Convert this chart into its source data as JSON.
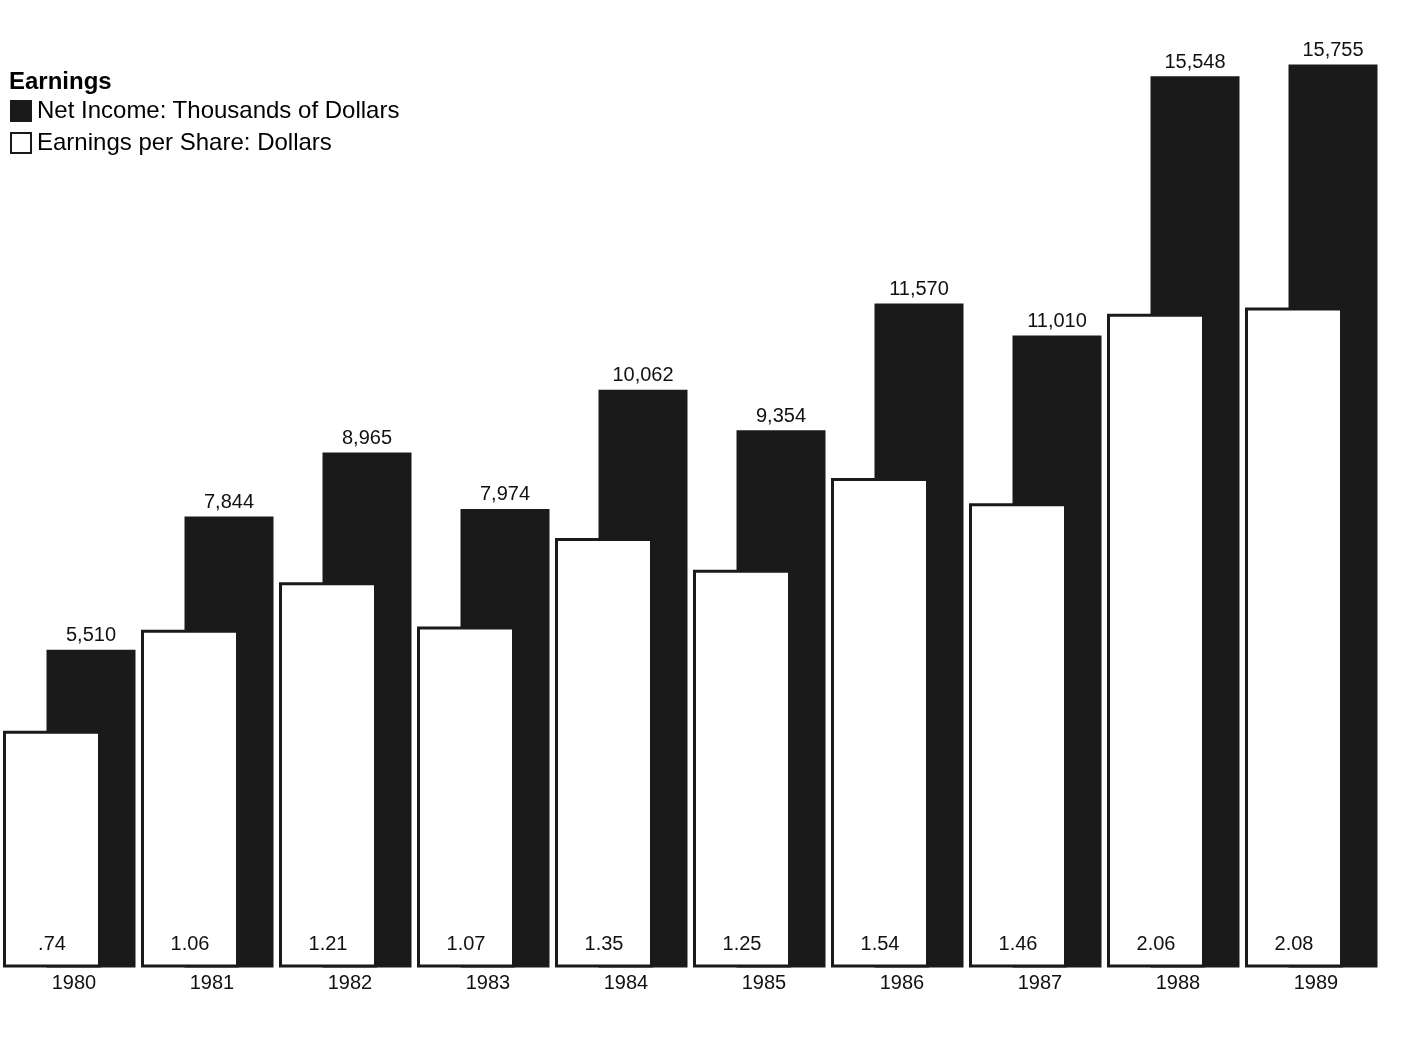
{
  "chart_data": {
    "type": "bar",
    "legend_title": "Earnings",
    "legend": "top left",
    "categories": [
      "1980",
      "1981",
      "1982",
      "1983",
      "1984",
      "1985",
      "1986",
      "1987",
      "1988",
      "1989"
    ],
    "series": [
      {
        "name": "Net Income: Thousands of Dollars",
        "color": "#1a1a1a",
        "values": [
          5510,
          7844,
          8965,
          7974,
          10062,
          9354,
          11570,
          11010,
          15548,
          15755
        ],
        "value_labels": [
          "5,510",
          "7,844",
          "8,965",
          "7,974",
          "10,062",
          "9,354",
          "11,570",
          "11,010",
          "15,548",
          "15,755"
        ]
      },
      {
        "name": "Earnings per Share: Dollars",
        "color": "#ffffff",
        "axis": "y2",
        "values": [
          0.74,
          1.06,
          1.21,
          1.07,
          1.35,
          1.25,
          1.54,
          1.46,
          2.06,
          2.08
        ],
        "value_labels": [
          ".74",
          "1.06",
          "1.21",
          "1.07",
          "1.35",
          "1.25",
          "1.54",
          "1.46",
          "2.06",
          "2.08"
        ]
      }
    ]
  }
}
